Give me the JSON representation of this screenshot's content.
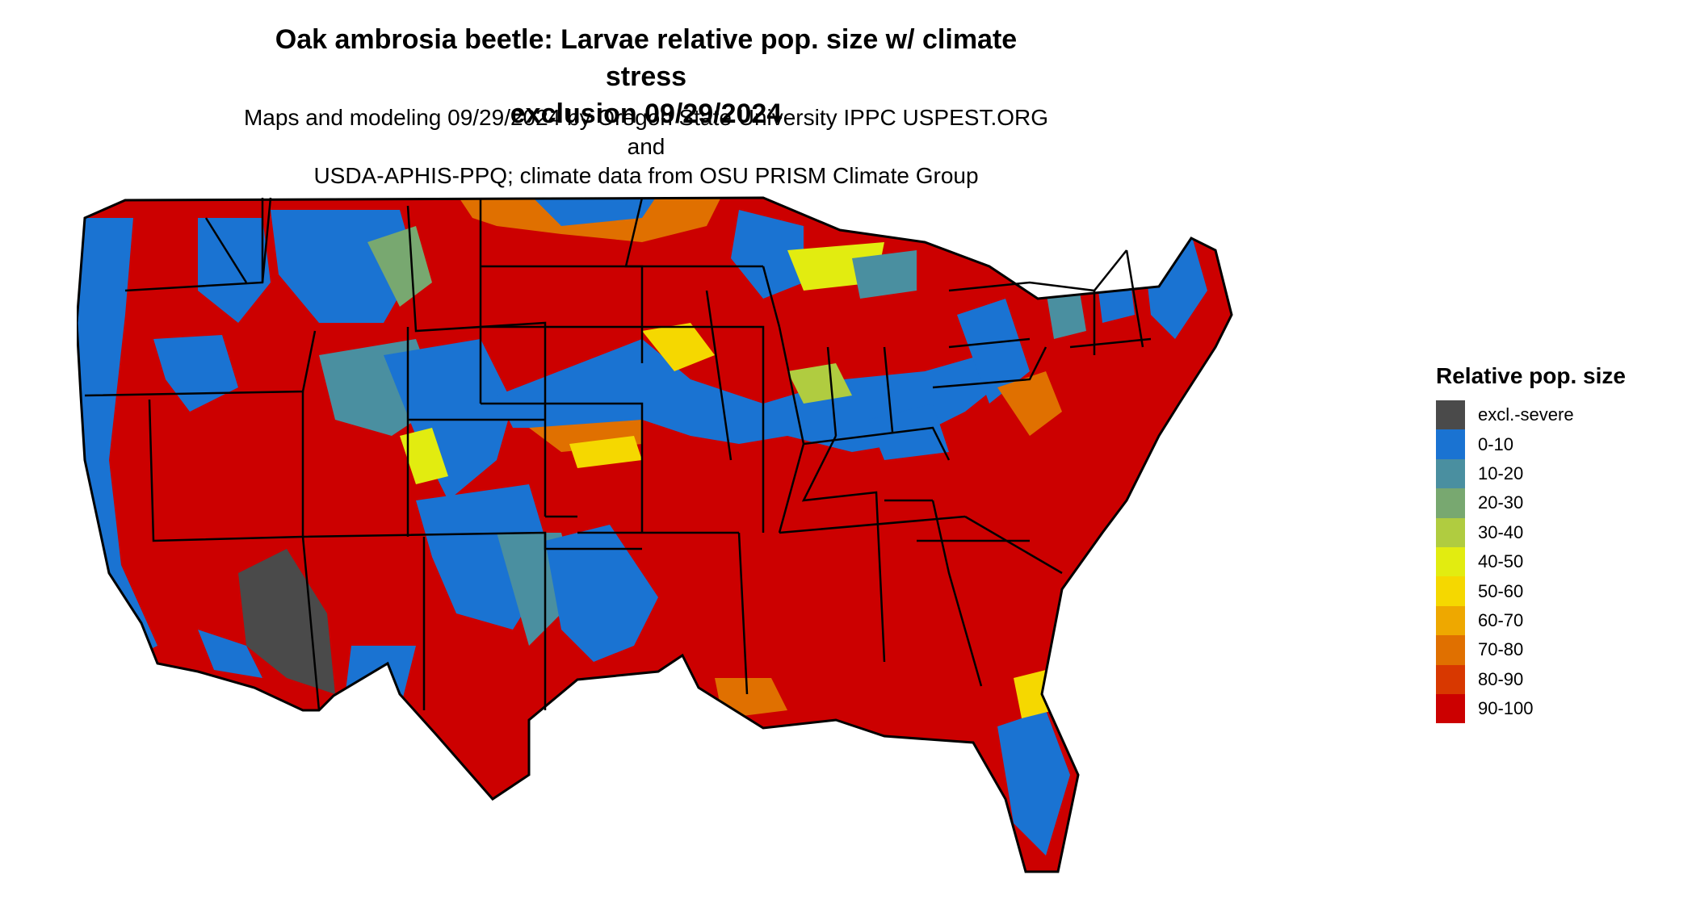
{
  "title_line1": "Oak ambrosia beetle: Larvae relative pop. size w/ climate stress",
  "title_line2": "exclusion 09/29/2024",
  "subtitle_line1": "Maps and modeling 09/29/2024 by Oregon State University IPPC USPEST.ORG and",
  "subtitle_line2": "USDA-APHIS-PPQ; climate data from OSU PRISM Climate Group",
  "legend": {
    "title": "Relative pop. size",
    "items": [
      {
        "label": "excl.-severe",
        "color": "#4a4a4a"
      },
      {
        "label": "0-10",
        "color": "#1a73d2"
      },
      {
        "label": "10-20",
        "color": "#4a8fa0"
      },
      {
        "label": "20-30",
        "color": "#78a870"
      },
      {
        "label": "30-40",
        "color": "#b0cc40"
      },
      {
        "label": "40-50",
        "color": "#e2ec10"
      },
      {
        "label": "50-60",
        "color": "#f5d800"
      },
      {
        "label": "60-70",
        "color": "#eea800"
      },
      {
        "label": "70-80",
        "color": "#e07000"
      },
      {
        "label": "80-90",
        "color": "#d83800"
      },
      {
        "label": "90-100",
        "color": "#cc0000"
      }
    ]
  }
}
